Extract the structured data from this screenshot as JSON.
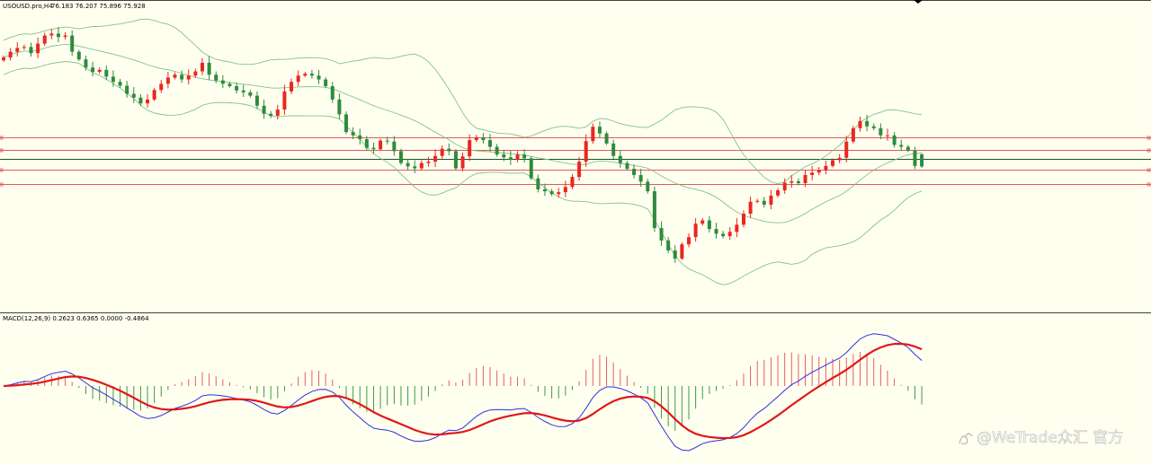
{
  "header": {
    "symbol_label": "USOUSD.pro,H4",
    "ohlc_label": "76.183 76.207 75.896 75.928"
  },
  "indicator": {
    "macd_label": "MACD(12,26,9) 0.2623 0.6365 0.0000 -0.4864"
  },
  "watermark": {
    "text": "@WeTrade众汇 官方"
  },
  "colors": {
    "background": "#fffff0",
    "bull_candle": "#e8281e",
    "bear_candle": "#2e8b3c",
    "bollinger": "#7fc489",
    "horizontal_levels": "#e05a5a",
    "current_price_line": "#1f4f2f",
    "macd_line": "#3030e0",
    "signal_line": "#e01818",
    "hist_positive": "#e06060",
    "hist_negative": "#3f9a3f"
  },
  "chart_data": [
    {
      "type": "candlestick",
      "symbol": "USOUSD.pro",
      "timeframe": "H4",
      "last_bar": {
        "open": 76.183,
        "high": 76.207,
        "low": 75.896,
        "close": 75.928
      },
      "price_range": [
        73.1,
        79.0
      ],
      "closes": [
        78.21,
        78.33,
        78.41,
        78.43,
        78.3,
        78.5,
        78.67,
        78.71,
        78.64,
        78.67,
        78.33,
        78.17,
        78.0,
        77.91,
        77.95,
        77.81,
        77.7,
        77.62,
        77.45,
        77.37,
        77.25,
        77.33,
        77.53,
        77.66,
        77.79,
        77.85,
        77.75,
        77.83,
        77.92,
        78.1,
        77.85,
        77.73,
        77.66,
        77.61,
        77.52,
        77.48,
        77.41,
        77.2,
        77.03,
        76.99,
        77.12,
        77.5,
        77.7,
        77.83,
        77.87,
        77.83,
        77.75,
        77.61,
        77.33,
        77.02,
        76.65,
        76.58,
        76.5,
        76.32,
        76.29,
        76.47,
        76.45,
        76.25,
        76.0,
        75.93,
        75.89,
        76.0,
        76.03,
        76.15,
        76.3,
        76.25,
        75.89,
        76.14,
        76.48,
        76.54,
        76.48,
        76.34,
        76.18,
        76.12,
        76.07,
        76.18,
        76.1,
        75.68,
        75.45,
        75.41,
        75.35,
        75.39,
        75.5,
        75.71,
        76.03,
        76.46,
        76.76,
        76.62,
        76.41,
        76.15,
        76.0,
        75.88,
        75.75,
        75.61,
        75.41,
        74.64,
        74.38,
        74.17,
        74.0,
        74.3,
        74.45,
        74.73,
        74.8,
        74.62,
        74.52,
        74.47,
        74.56,
        74.71,
        74.94,
        75.19,
        75.21,
        75.13,
        75.32,
        75.43,
        75.59,
        75.62,
        75.58,
        75.75,
        75.8,
        75.85,
        75.94,
        76.06,
        76.11,
        76.45,
        76.73,
        76.88,
        76.77,
        76.73,
        76.58,
        76.58,
        76.38,
        76.34,
        76.26,
        75.94,
        75.93
      ],
      "bollinger": {
        "period": 20,
        "deviations": 2
      },
      "horizontal_levels": [
        76.54,
        76.27,
        75.86,
        75.57
      ],
      "current_price_line": 76.08
    },
    {
      "type": "macd",
      "parameters": [
        12,
        26,
        9
      ],
      "values": {
        "macd": 0.2623,
        "signal": 0.6365,
        "zero": 0.0,
        "histogram": -0.4864
      },
      "series": [
        {
          "name": "MACD",
          "style": "line"
        },
        {
          "name": "Signal",
          "style": "line"
        },
        {
          "name": "Histogram",
          "style": "bars"
        }
      ]
    }
  ]
}
